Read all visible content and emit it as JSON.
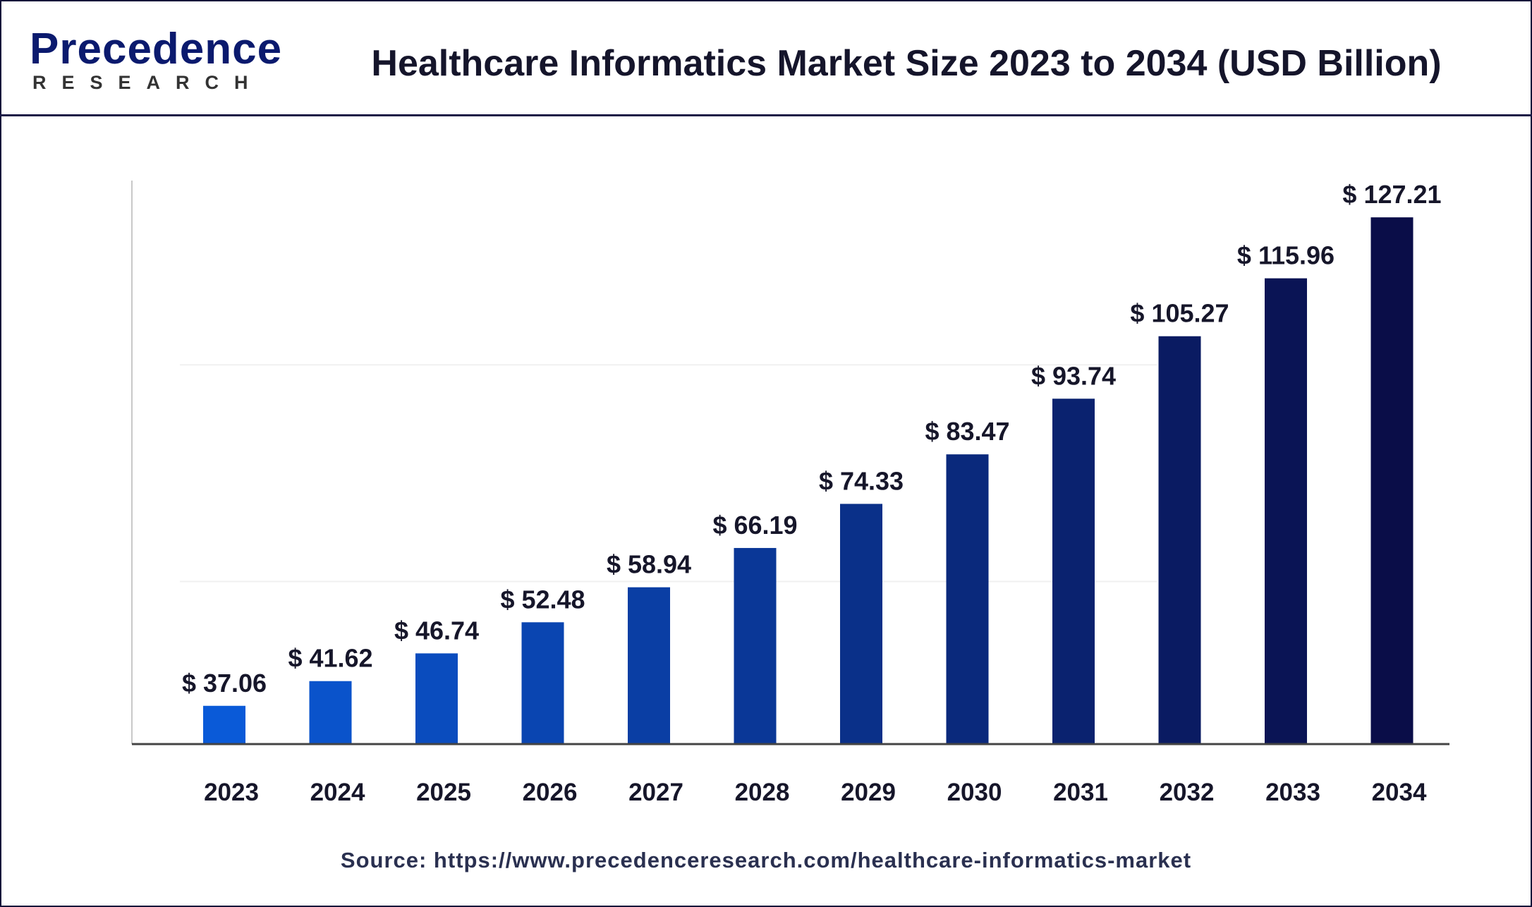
{
  "logo": {
    "top": "Precedence",
    "bottom": "RESEARCH"
  },
  "title": "Healthcare Informatics Market Size 2023 to 2034 (USD Billion)",
  "source": "Source: https://www.precedenceresearch.com/healthcare-informatics-market",
  "chart_data": {
    "type": "bar",
    "title": "Healthcare Informatics Market Size 2023 to 2034 (USD Billion)",
    "categories": [
      "2023",
      "2024",
      "2025",
      "2026",
      "2027",
      "2028",
      "2029",
      "2030",
      "2031",
      "2032",
      "2033",
      "2034"
    ],
    "values": [
      37.06,
      41.62,
      46.74,
      52.48,
      58.94,
      66.19,
      74.33,
      83.47,
      93.74,
      105.27,
      115.96,
      127.21
    ],
    "value_labels": [
      "$ 37.06",
      "$ 41.62",
      "$ 46.74",
      "$ 52.48",
      "$ 58.94",
      "$ 66.19",
      "$ 74.33",
      "$ 83.47",
      "$ 93.74",
      "$ 105.27",
      "$ 115.96",
      "$ 127.21"
    ],
    "xlabel": "",
    "ylabel": "",
    "ylim": [
      30,
      134
    ],
    "grid": true,
    "colors": {
      "start": "#0a5ad8",
      "end": "#0a0d48"
    }
  }
}
